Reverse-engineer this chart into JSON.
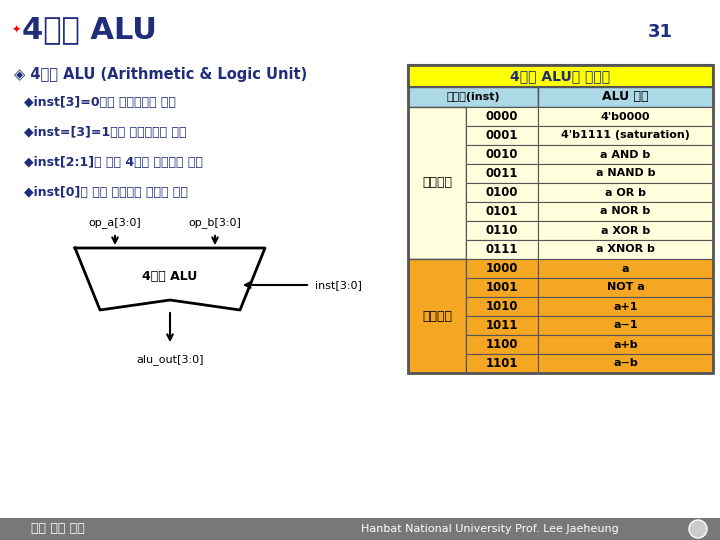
{
  "title": "4비트 ALU",
  "page_num": "31",
  "bg_color": "#FFFFFF",
  "title_color": "#1F2D7B",
  "slide_title": "4비트 ALU (Arithmetic & Logic Unit)",
  "bullet1": "◆inst[3]=0이면 논리연산을 수행",
  "bullet2": "◆inst=[3]=1이면 산술연산을 수행",
  "bullet3": "◆inst[2:1]에 따라 4가지 논리연산 수행",
  "bullet4": "◆inst[0]에 따라 논리연산 결과를 반전",
  "alu_label": "4비트 ALU",
  "op_a": "op_a[3:0]",
  "op_b": "op_b[3:0]",
  "alu_out": "alu_out[3:0]",
  "inst_label": "inst[3:0]",
  "table_title": "4비트 ALU의 명령어",
  "col1_header": "명령어(inst)",
  "col2_header": "ALU 동작",
  "logic_label": "논리연산",
  "arith_label": "산술연산",
  "table_title_bg": "#FFFF00",
  "col_header_bg": "#ADD8E6",
  "logic_bg": "#FFFFDD",
  "arith_bg": "#F5A623",
  "logic_rows": [
    [
      "0000",
      "4'b0000"
    ],
    [
      "0001",
      "4'b1111 (saturation)"
    ],
    [
      "0010",
      "a AND b"
    ],
    [
      "0011",
      "a NAND b"
    ],
    [
      "0100",
      "a OR b"
    ],
    [
      "0101",
      "a NOR b"
    ],
    [
      "0110",
      "a XOR b"
    ],
    [
      "0111",
      "a XNOR b"
    ]
  ],
  "arith_rows": [
    [
      "1000",
      "a"
    ],
    [
      "1001",
      "NOT a"
    ],
    [
      "1010",
      "a+1"
    ],
    [
      "1011",
      "a−1"
    ],
    [
      "1100",
      "a+b"
    ],
    [
      "1101",
      "a−b"
    ]
  ],
  "footer_left": "접역 회로 설계",
  "footer_right": "Hanbat National University Prof. Lee Jaeheung",
  "footer_bg": "#787878",
  "border_color": "#555555"
}
